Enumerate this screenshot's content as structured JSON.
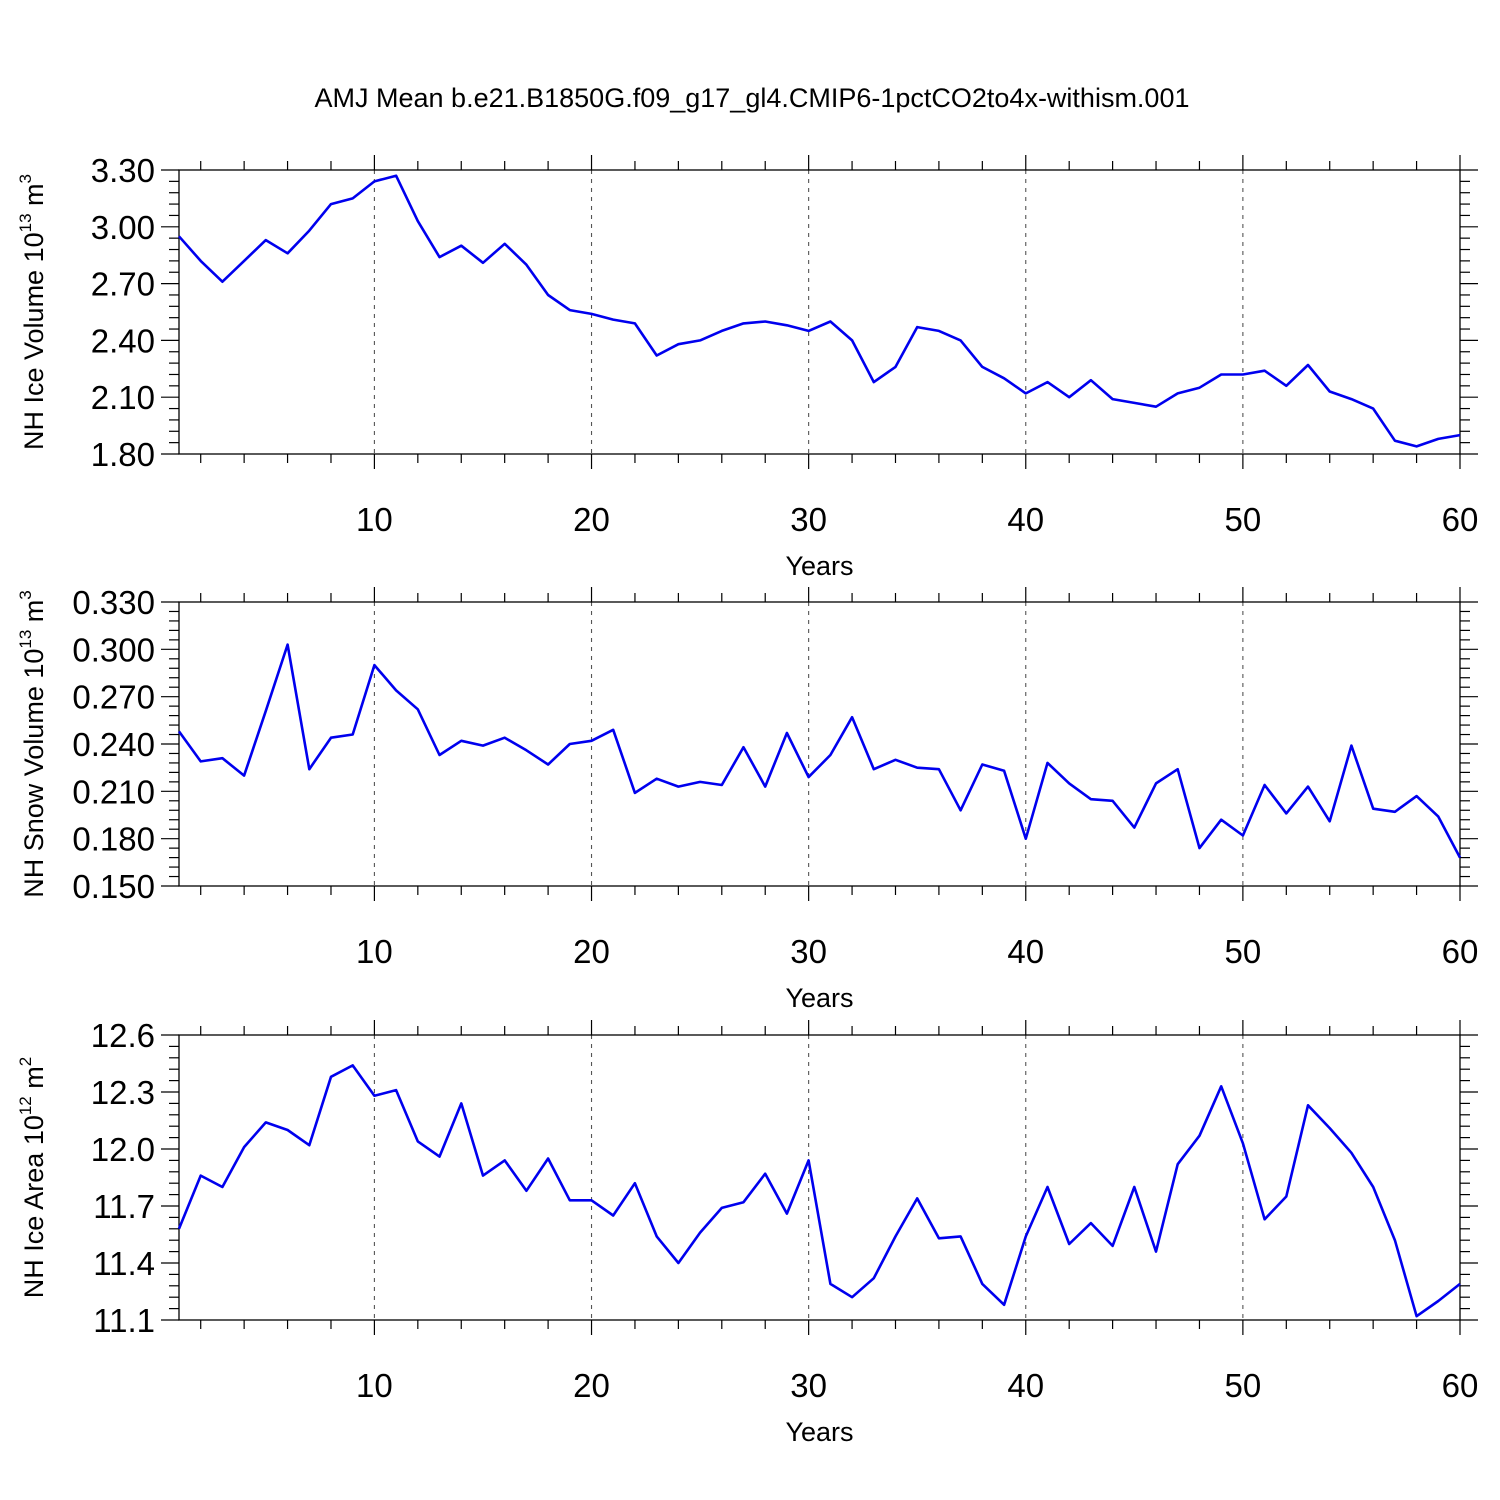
{
  "title": "AMJ Mean b.e21.B1850G.f09_g17_gl4.CMIP6-1pctCO2to4x-withism.001",
  "colors": {
    "line": "#0000ee",
    "axis": "#000000",
    "grid": "#555555"
  },
  "chart_data": [
    {
      "type": "line",
      "ylabel_main": "NH Ice Volume 10",
      "ylabel_exp": "13",
      "ylabel_unit": " m",
      "ylabel_unit_exp": "3",
      "xlabel": "Years",
      "xlim": [
        1,
        60
      ],
      "ylim": [
        1.8,
        3.3
      ],
      "xticks": [
        10,
        20,
        30,
        40,
        50,
        60
      ],
      "xtick_labels": [
        "10",
        "20",
        "30",
        "40",
        "50",
        "60"
      ],
      "yticks": [
        1.8,
        2.1,
        2.4,
        2.7,
        3.0,
        3.3
      ],
      "ytick_labels": [
        "1.80",
        "2.10",
        "2.40",
        "2.70",
        "3.00",
        "3.30"
      ],
      "grid": "vertical-dashed",
      "x": [
        1,
        2,
        3,
        4,
        5,
        6,
        7,
        8,
        9,
        10,
        11,
        12,
        13,
        14,
        15,
        16,
        17,
        18,
        19,
        20,
        21,
        22,
        23,
        24,
        25,
        26,
        27,
        28,
        29,
        30,
        31,
        32,
        33,
        34,
        35,
        36,
        37,
        38,
        39,
        40,
        41,
        42,
        43,
        44,
        45,
        46,
        47,
        48,
        49,
        50,
        51,
        52,
        53,
        54,
        55,
        56,
        57,
        58,
        59,
        60
      ],
      "values": [
        2.95,
        2.82,
        2.71,
        2.82,
        2.93,
        2.86,
        2.98,
        3.12,
        3.15,
        3.24,
        3.27,
        3.03,
        2.84,
        2.9,
        2.81,
        2.91,
        2.8,
        2.64,
        2.56,
        2.54,
        2.51,
        2.49,
        2.32,
        2.38,
        2.4,
        2.45,
        2.49,
        2.5,
        2.48,
        2.45,
        2.5,
        2.4,
        2.18,
        2.26,
        2.47,
        2.45,
        2.4,
        2.26,
        2.2,
        2.12,
        2.18,
        2.1,
        2.19,
        2.09,
        2.07,
        2.05,
        2.12,
        2.15,
        2.22,
        2.22,
        2.24,
        2.16,
        2.27,
        2.13,
        2.09,
        2.04,
        1.87,
        1.84,
        1.88,
        1.9
      ]
    },
    {
      "type": "line",
      "ylabel_main": "NH Snow Volume 10",
      "ylabel_exp": "13",
      "ylabel_unit": " m",
      "ylabel_unit_exp": "3",
      "xlabel": "Years",
      "xlim": [
        1,
        60
      ],
      "ylim": [
        0.15,
        0.33
      ],
      "xticks": [
        10,
        20,
        30,
        40,
        50,
        60
      ],
      "xtick_labels": [
        "10",
        "20",
        "30",
        "40",
        "50",
        "60"
      ],
      "yticks": [
        0.15,
        0.18,
        0.21,
        0.24,
        0.27,
        0.3,
        0.33
      ],
      "ytick_labels": [
        "0.150",
        "0.180",
        "0.210",
        "0.240",
        "0.270",
        "0.300",
        "0.330"
      ],
      "grid": "vertical-dashed",
      "x": [
        1,
        2,
        3,
        4,
        5,
        6,
        7,
        8,
        9,
        10,
        11,
        12,
        13,
        14,
        15,
        16,
        17,
        18,
        19,
        20,
        21,
        22,
        23,
        24,
        25,
        26,
        27,
        28,
        29,
        30,
        31,
        32,
        33,
        34,
        35,
        36,
        37,
        38,
        39,
        40,
        41,
        42,
        43,
        44,
        45,
        46,
        47,
        48,
        49,
        50,
        51,
        52,
        53,
        54,
        55,
        56,
        57,
        58,
        59,
        60
      ],
      "values": [
        0.248,
        0.229,
        0.231,
        0.22,
        0.261,
        0.303,
        0.224,
        0.244,
        0.246,
        0.29,
        0.274,
        0.262,
        0.233,
        0.242,
        0.239,
        0.244,
        0.236,
        0.227,
        0.24,
        0.242,
        0.249,
        0.209,
        0.218,
        0.213,
        0.216,
        0.214,
        0.238,
        0.213,
        0.247,
        0.219,
        0.233,
        0.257,
        0.224,
        0.23,
        0.225,
        0.224,
        0.198,
        0.227,
        0.223,
        0.18,
        0.228,
        0.215,
        0.205,
        0.204,
        0.187,
        0.215,
        0.224,
        0.174,
        0.192,
        0.182,
        0.214,
        0.196,
        0.213,
        0.191,
        0.239,
        0.199,
        0.197,
        0.207,
        0.194,
        0.168
      ]
    },
    {
      "type": "line",
      "ylabel_main": "NH Ice Area 10",
      "ylabel_exp": "12",
      "ylabel_unit": " m",
      "ylabel_unit_exp": "2",
      "xlabel": "Years",
      "xlim": [
        1,
        60
      ],
      "ylim": [
        11.1,
        12.6
      ],
      "xticks": [
        10,
        20,
        30,
        40,
        50,
        60
      ],
      "xtick_labels": [
        "10",
        "20",
        "30",
        "40",
        "50",
        "60"
      ],
      "yticks": [
        11.1,
        11.4,
        11.7,
        12.0,
        12.3,
        12.6
      ],
      "ytick_labels": [
        "11.1",
        "11.4",
        "11.7",
        "12.0",
        "12.3",
        "12.6"
      ],
      "grid": "vertical-dashed",
      "x": [
        1,
        2,
        3,
        4,
        5,
        6,
        7,
        8,
        9,
        10,
        11,
        12,
        13,
        14,
        15,
        16,
        17,
        18,
        19,
        20,
        21,
        22,
        23,
        24,
        25,
        26,
        27,
        28,
        29,
        30,
        31,
        32,
        33,
        34,
        35,
        36,
        37,
        38,
        39,
        40,
        41,
        42,
        43,
        44,
        45,
        46,
        47,
        48,
        49,
        50,
        51,
        52,
        53,
        54,
        55,
        56,
        57,
        58,
        59,
        60
      ],
      "values": [
        11.58,
        11.86,
        11.8,
        12.01,
        12.14,
        12.1,
        12.02,
        12.38,
        12.44,
        12.28,
        12.31,
        12.04,
        11.96,
        12.24,
        11.86,
        11.94,
        11.78,
        11.95,
        11.73,
        11.73,
        11.65,
        11.82,
        11.54,
        11.4,
        11.56,
        11.69,
        11.72,
        11.87,
        11.66,
        11.94,
        11.29,
        11.22,
        11.32,
        11.54,
        11.74,
        11.53,
        11.54,
        11.29,
        11.18,
        11.54,
        11.8,
        11.5,
        11.61,
        11.49,
        11.8,
        11.46,
        11.92,
        12.07,
        12.33,
        12.03,
        11.63,
        11.75,
        12.23,
        12.11,
        11.98,
        11.8,
        11.52,
        11.12,
        11.2,
        11.29
      ]
    }
  ]
}
